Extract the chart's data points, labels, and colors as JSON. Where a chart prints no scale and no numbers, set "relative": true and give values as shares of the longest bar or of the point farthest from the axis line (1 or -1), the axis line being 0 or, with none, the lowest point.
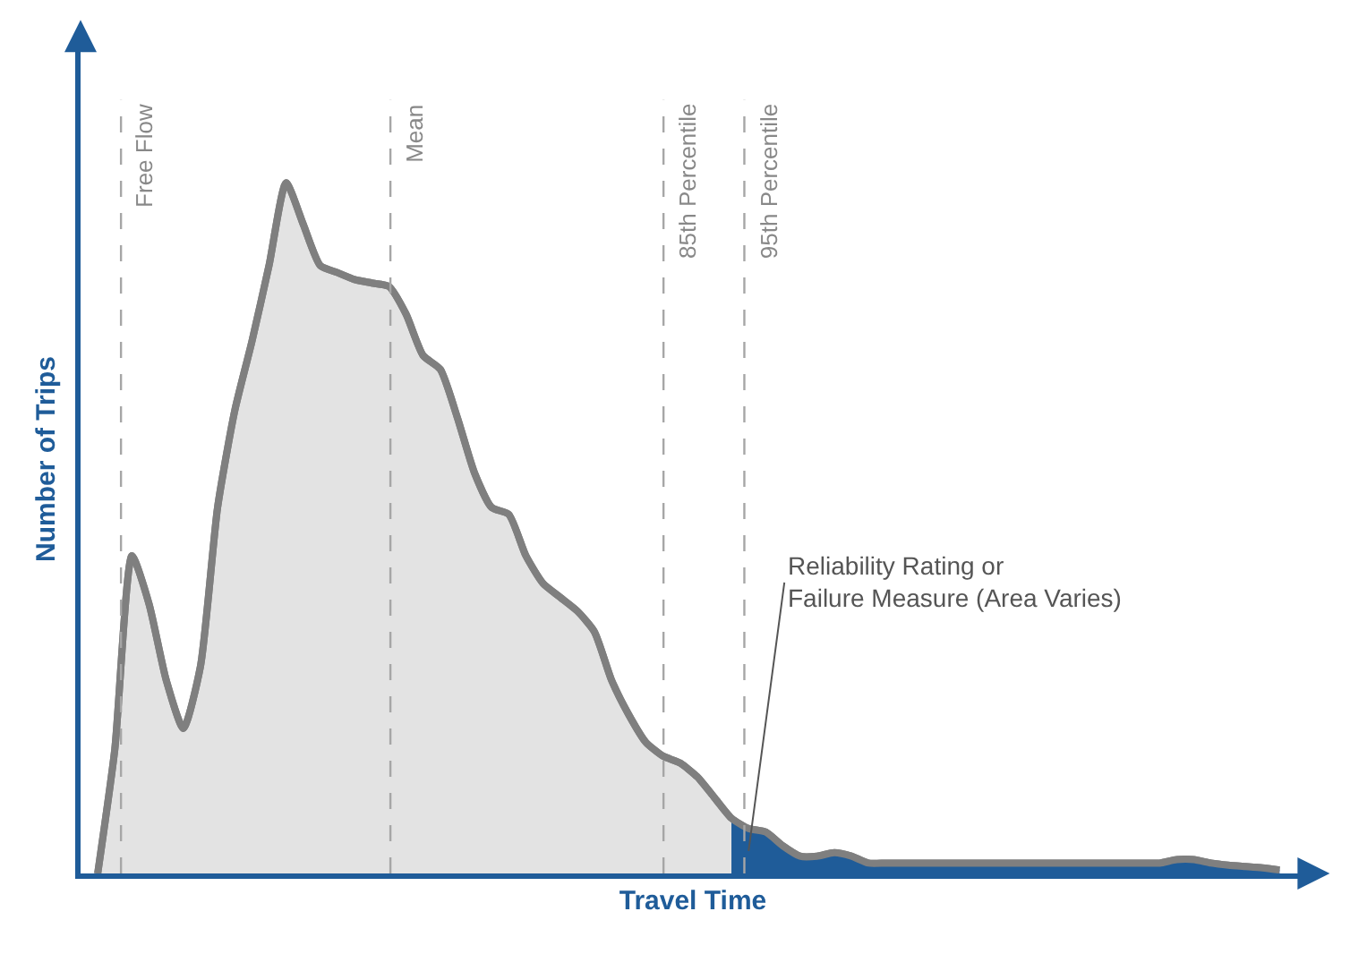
{
  "chart_data": {
    "type": "area",
    "relative": true,
    "xlabel": "Travel Time",
    "ylabel": "Number of Trips",
    "categories": [
      null,
      null,
      null,
      null,
      null,
      null,
      null,
      null,
      null,
      null,
      null,
      null,
      null,
      null,
      null,
      null,
      null,
      null,
      null,
      null,
      null,
      null,
      null,
      null,
      null,
      null,
      null,
      null,
      null,
      null,
      null,
      null,
      null,
      null,
      null,
      null,
      null,
      null,
      null,
      null,
      null,
      null,
      null,
      null,
      null,
      null,
      null,
      null,
      null,
      null,
      null,
      null,
      null,
      null,
      null,
      null,
      null,
      null,
      null,
      null,
      null,
      null,
      null,
      null,
      null,
      null,
      null,
      null,
      null,
      null
    ],
    "series": [
      {
        "color": "#7f7f7f",
        "values": [
          0,
          0.18,
          0.46,
          0.39,
          0.28,
          0.21,
          0.3,
          0.53,
          0.67,
          0.77,
          0.88,
          1,
          0.94,
          0.88,
          0.87,
          0.86,
          0.855,
          0.85,
          0.81,
          0.75,
          0.73,
          0.66,
          0.58,
          0.53,
          0.52,
          0.46,
          0.42,
          0.4,
          0.38,
          0.35,
          0.28,
          0.23,
          0.19,
          0.17,
          0.16,
          0.14,
          0.11,
          0.08,
          0.065,
          0.06,
          0.04,
          0.025,
          0.025,
          0.03,
          0.025,
          0.015,
          0.015,
          0.015,
          0.015,
          0.015,
          0.015,
          0.015,
          0.015,
          0.015,
          0.015,
          0.015,
          0.015,
          0.015,
          0.015,
          0.015,
          0.015,
          0.015,
          0.015,
          0.02,
          0.02,
          0.015,
          0.012,
          0.01,
          0.008,
          0.005
        ]
      },
      {
        "color": "#1f5c99",
        "values": [
          null,
          null,
          null,
          null,
          null,
          null,
          null,
          null,
          null,
          null,
          null,
          null,
          null,
          null,
          null,
          null,
          null,
          null,
          null,
          null,
          null,
          null,
          null,
          null,
          null,
          null,
          null,
          null,
          null,
          null,
          null,
          null,
          null,
          null,
          null,
          null,
          null,
          0.08,
          0.065,
          0.06,
          0.04,
          0.025,
          0.025,
          0.03,
          0.025,
          0.015,
          0.015,
          0.015,
          0.015,
          0.015,
          0.015,
          0.015,
          0.015,
          0.015,
          0.015,
          0.015,
          0.015,
          0.015,
          0.015,
          0.015,
          0.015,
          0.015,
          0.015,
          0.02,
          0.02,
          0.015,
          0.012,
          0.01,
          0.008,
          0.005
        ]
      }
    ],
    "annotations": [
      "Free Flow",
      "Mean",
      "85th Percentile",
      "95th Percentile",
      "Reliability Rating or\nFailure Measure (Area Varies)"
    ],
    "tick_labels": false
  }
}
